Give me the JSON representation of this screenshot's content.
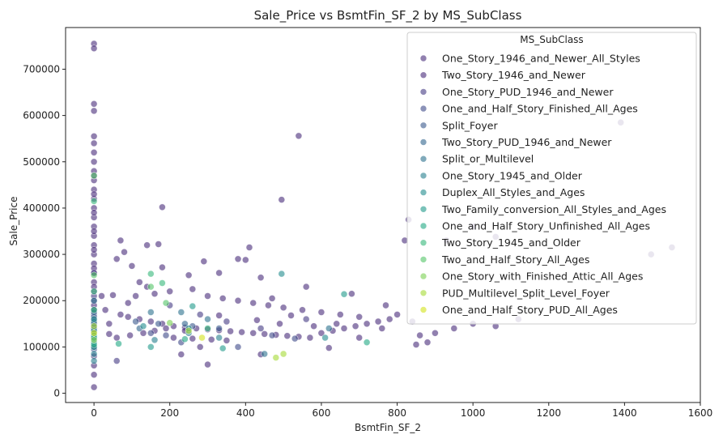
{
  "chart_data": {
    "type": "scatter",
    "title": "Sale_Price vs BsmtFin_SF_2 by MS_SubClass",
    "xlabel": "BsmtFin_SF_2",
    "ylabel": "Sale_Price",
    "xlim": [
      -75,
      1600
    ],
    "ylim": [
      -20000,
      790000
    ],
    "x_ticks": [
      0,
      200,
      400,
      600,
      800,
      1000,
      1200,
      1400,
      1600
    ],
    "y_ticks": [
      0,
      100000,
      200000,
      300000,
      400000,
      500000,
      600000,
      700000
    ],
    "grid": false,
    "legend": {
      "title": "MS_SubClass",
      "placement": "top-right",
      "entries": [
        {
          "label": "One_Story_1946_and_Newer_All_Styles",
          "color": "#472c7a"
        },
        {
          "label": "Two_Story_1946_and_Newer",
          "color": "#482979"
        },
        {
          "label": "One_Story_PUD_1946_and_Newer",
          "color": "#443a83"
        },
        {
          "label": "One_and_Half_Story_Finished_All_Ages",
          "color": "#3e4989"
        },
        {
          "label": "Split_Foyer",
          "color": "#38588c"
        },
        {
          "label": "Two_Story_PUD_1946_and_Newer",
          "color": "#31668e"
        },
        {
          "label": "Split_or_Multilevel",
          "color": "#2c728e"
        },
        {
          "label": "One_Story_1945_and_Older",
          "color": "#277f8e"
        },
        {
          "label": "Duplex_All_Styles_and_Ages",
          "color": "#228c8d"
        },
        {
          "label": "Two_Family_conversion_All_Styles_and_Ages",
          "color": "#1f9a8a"
        },
        {
          "label": "One_and_Half_Story_Unfinished_All_Ages",
          "color": "#22a884"
        },
        {
          "label": "Two_Story_1945_and_Older",
          "color": "#35b779"
        },
        {
          "label": "Two_and_Half_Story_All_Ages",
          "color": "#54c568"
        },
        {
          "label": "One_Story_with_Finished_Attic_All_Ages",
          "color": "#7ad151"
        },
        {
          "label": "PUD_Multilevel_Split_Level_Foyer",
          "color": "#a5db36"
        },
        {
          "label": "One_and_Half_Story_PUD_All_Ages",
          "color": "#d2e21b"
        }
      ]
    },
    "series": [
      {
        "name": "One_Story_1946_and_Newer_All_Styles",
        "points": [
          [
            0,
            755000
          ],
          [
            0,
            745000
          ],
          [
            0,
            625000
          ],
          [
            0,
            610000
          ],
          [
            0,
            555000
          ],
          [
            0,
            540000
          ],
          [
            0,
            500000
          ],
          [
            0,
            480000
          ],
          [
            0,
            460000
          ],
          [
            0,
            440000
          ],
          [
            0,
            420000
          ],
          [
            0,
            400000
          ],
          [
            0,
            380000
          ],
          [
            0,
            360000
          ],
          [
            0,
            340000
          ],
          [
            0,
            320000
          ],
          [
            0,
            300000
          ],
          [
            0,
            280000
          ],
          [
            0,
            260000
          ],
          [
            0,
            240000
          ],
          [
            0,
            220000
          ],
          [
            0,
            200000
          ],
          [
            0,
            180000
          ],
          [
            0,
            160000
          ],
          [
            0,
            140000
          ],
          [
            0,
            120000
          ],
          [
            0,
            100000
          ],
          [
            0,
            80000
          ],
          [
            0,
            60000
          ],
          [
            0,
            40000
          ],
          [
            0,
            13000
          ],
          [
            180,
            402000
          ],
          [
            495,
            418000
          ],
          [
            540,
            556000
          ],
          [
            410,
            315000
          ],
          [
            380,
            290000
          ],
          [
            400,
            288000
          ],
          [
            140,
            320000
          ],
          [
            170,
            322000
          ],
          [
            70,
            330000
          ],
          [
            80,
            305000
          ],
          [
            60,
            290000
          ],
          [
            100,
            275000
          ],
          [
            180,
            272000
          ],
          [
            20,
            210000
          ],
          [
            50,
            212000
          ],
          [
            30,
            180000
          ],
          [
            70,
            170000
          ],
          [
            90,
            165000
          ],
          [
            120,
            160000
          ],
          [
            150,
            155000
          ],
          [
            180,
            150000
          ],
          [
            210,
            145000
          ],
          [
            240,
            142000
          ],
          [
            270,
            140000
          ],
          [
            300,
            138000
          ],
          [
            330,
            136000
          ],
          [
            360,
            134000
          ],
          [
            390,
            132000
          ],
          [
            420,
            130000
          ],
          [
            450,
            128000
          ],
          [
            480,
            126000
          ],
          [
            510,
            124000
          ],
          [
            540,
            122000
          ],
          [
            570,
            120000
          ],
          [
            600,
            130000
          ],
          [
            630,
            135000
          ],
          [
            660,
            140000
          ],
          [
            690,
            145000
          ],
          [
            720,
            150000
          ],
          [
            750,
            155000
          ],
          [
            780,
            160000
          ],
          [
            110,
            210000
          ],
          [
            160,
            215000
          ],
          [
            200,
            220000
          ],
          [
            260,
            225000
          ],
          [
            300,
            210000
          ],
          [
            340,
            205000
          ],
          [
            380,
            200000
          ],
          [
            420,
            195000
          ],
          [
            460,
            190000
          ],
          [
            500,
            185000
          ],
          [
            550,
            180000
          ],
          [
            600,
            175000
          ],
          [
            650,
            170000
          ],
          [
            700,
            165000
          ],
          [
            300,
            62000
          ],
          [
            210,
            120000
          ],
          [
            260,
            118000
          ],
          [
            310,
            116000
          ],
          [
            350,
            114000
          ],
          [
            230,
            84000
          ],
          [
            440,
            84000
          ],
          [
            620,
            98000
          ],
          [
            880,
            110000
          ],
          [
            850,
            105000
          ],
          [
            900,
            130000
          ],
          [
            950,
            140000
          ],
          [
            1000,
            150000
          ],
          [
            1060,
            145000
          ],
          [
            1120,
            160000
          ],
          [
            1390,
            585000
          ],
          [
            1470,
            300000
          ],
          [
            1525,
            315000
          ],
          [
            1000,
            360000
          ],
          [
            1060,
            338000
          ],
          [
            830,
            375000
          ],
          [
            820,
            330000
          ],
          [
            930,
            330000
          ],
          [
            840,
            155000
          ],
          [
            770,
            190000
          ],
          [
            680,
            215000
          ],
          [
            560,
            230000
          ],
          [
            440,
            250000
          ],
          [
            330,
            260000
          ],
          [
            250,
            255000
          ],
          [
            140,
            230000
          ],
          [
            120,
            240000
          ],
          [
            90,
            195000
          ],
          [
            40,
            150000
          ],
          [
            60,
            120000
          ],
          [
            95,
            125000
          ],
          [
            130,
            130000
          ],
          [
            160,
            135000
          ],
          [
            190,
            140000
          ],
          [
            280,
            100000
          ],
          [
            40,
            128000
          ],
          [
            470,
            205000
          ],
          [
            640,
            150000
          ],
          [
            860,
            125000
          ]
        ]
      },
      {
        "name": "Two_Story_1946_and_Newer",
        "points": [
          [
            0,
            520000
          ],
          [
            0,
            470000
          ],
          [
            0,
            430000
          ],
          [
            0,
            390000
          ],
          [
            0,
            350000
          ],
          [
            0,
            310000
          ],
          [
            0,
            270000
          ],
          [
            0,
            230000
          ],
          [
            0,
            190000
          ],
          [
            0,
            150000
          ],
          [
            240,
            135000
          ],
          [
            290,
            285000
          ],
          [
            330,
            168000
          ],
          [
            430,
            158000
          ],
          [
            490,
            150000
          ],
          [
            520,
            168000
          ],
          [
            580,
            145000
          ],
          [
            700,
            120000
          ],
          [
            760,
            140000
          ],
          [
            800,
            170000
          ]
        ]
      },
      {
        "name": "One_Story_PUD_1946_and_Newer",
        "points": [
          [
            0,
            260000
          ],
          [
            0,
            210000
          ],
          [
            0,
            170000
          ],
          [
            0,
            135000
          ],
          [
            60,
            70000
          ],
          [
            200,
            190000
          ],
          [
            280,
            170000
          ],
          [
            350,
            155000
          ],
          [
            440,
            140000
          ],
          [
            560,
            160000
          ]
        ]
      },
      {
        "name": "One_and_Half_Story_Finished_All_Ages",
        "points": [
          [
            0,
            180000
          ],
          [
            0,
            145000
          ],
          [
            0,
            120000
          ],
          [
            0,
            95000
          ],
          [
            150,
            130000
          ],
          [
            190,
            125000
          ],
          [
            230,
            110000
          ],
          [
            380,
            100000
          ],
          [
            470,
            125000
          ],
          [
            530,
            118000
          ]
        ]
      },
      {
        "name": "Split_Foyer",
        "points": [
          [
            0,
            165000
          ],
          [
            0,
            140000
          ],
          [
            110,
            155000
          ],
          [
            170,
            150000
          ],
          [
            260,
            145000
          ],
          [
            330,
            140000
          ]
        ]
      },
      {
        "name": "Two_Story_PUD_1946_and_Newer",
        "points": [
          [
            0,
            175000
          ],
          [
            0,
            150000
          ],
          [
            120,
            140000
          ],
          [
            240,
            150000
          ]
        ]
      },
      {
        "name": "Split_or_Multilevel",
        "points": [
          [
            0,
            200000
          ],
          [
            0,
            155000
          ],
          [
            0,
            130000
          ],
          [
            150,
            175000
          ],
          [
            230,
            175000
          ],
          [
            300,
            160000
          ],
          [
            450,
            85000
          ],
          [
            620,
            140000
          ]
        ]
      },
      {
        "name": "One_Story_1945_and_Older",
        "points": [
          [
            0,
            110000
          ],
          [
            0,
            85000
          ],
          [
            0,
            70000
          ],
          [
            0,
            125000
          ],
          [
            160,
            115000
          ],
          [
            250,
            130000
          ],
          [
            330,
            120000
          ]
        ]
      },
      {
        "name": "Duplex_All_Styles_and_Ages",
        "points": [
          [
            0,
            160000
          ],
          [
            0,
            135000
          ],
          [
            130,
            145000
          ],
          [
            250,
            140000
          ],
          [
            495,
            258000
          ],
          [
            610,
            120000
          ]
        ]
      },
      {
        "name": "Two_Family_conversion_All_Styles_and_Ages",
        "points": [
          [
            0,
            125000
          ],
          [
            0,
            100000
          ],
          [
            150,
            100000
          ],
          [
            260,
            188000
          ],
          [
            340,
            97000
          ],
          [
            660,
            214000
          ]
        ]
      },
      {
        "name": "One_and_Half_Story_Unfinished_All_Ages",
        "points": [
          [
            0,
            120000
          ],
          [
            0,
            105000
          ],
          [
            65,
            107000
          ],
          [
            240,
            117000
          ],
          [
            720,
            110000
          ]
        ]
      },
      {
        "name": "Two_Story_1945_and_Older",
        "points": [
          [
            0,
            415000
          ],
          [
            0,
            220000
          ],
          [
            0,
            180000
          ],
          [
            150,
            258000
          ],
          [
            180,
            238000
          ],
          [
            300,
            140000
          ]
        ]
      },
      {
        "name": "Two_and_Half_Story_All_Ages",
        "points": [
          [
            0,
            470000
          ],
          [
            0,
            255000
          ],
          [
            150,
            230000
          ],
          [
            190,
            195000
          ]
        ]
      },
      {
        "name": "One_Story_with_Finished_Attic_All_Ages",
        "points": [
          [
            0,
            115000
          ],
          [
            200,
            152000
          ]
        ]
      },
      {
        "name": "PUD_Multilevel_Split_Level_Foyer",
        "points": [
          [
            0,
            145000
          ],
          [
            480,
            77000
          ],
          [
            500,
            85000
          ],
          [
            250,
            135000
          ]
        ]
      },
      {
        "name": "One_and_Half_Story_PUD_All_Ages",
        "points": [
          [
            0,
            130000
          ],
          [
            285,
            120000
          ]
        ]
      }
    ]
  }
}
